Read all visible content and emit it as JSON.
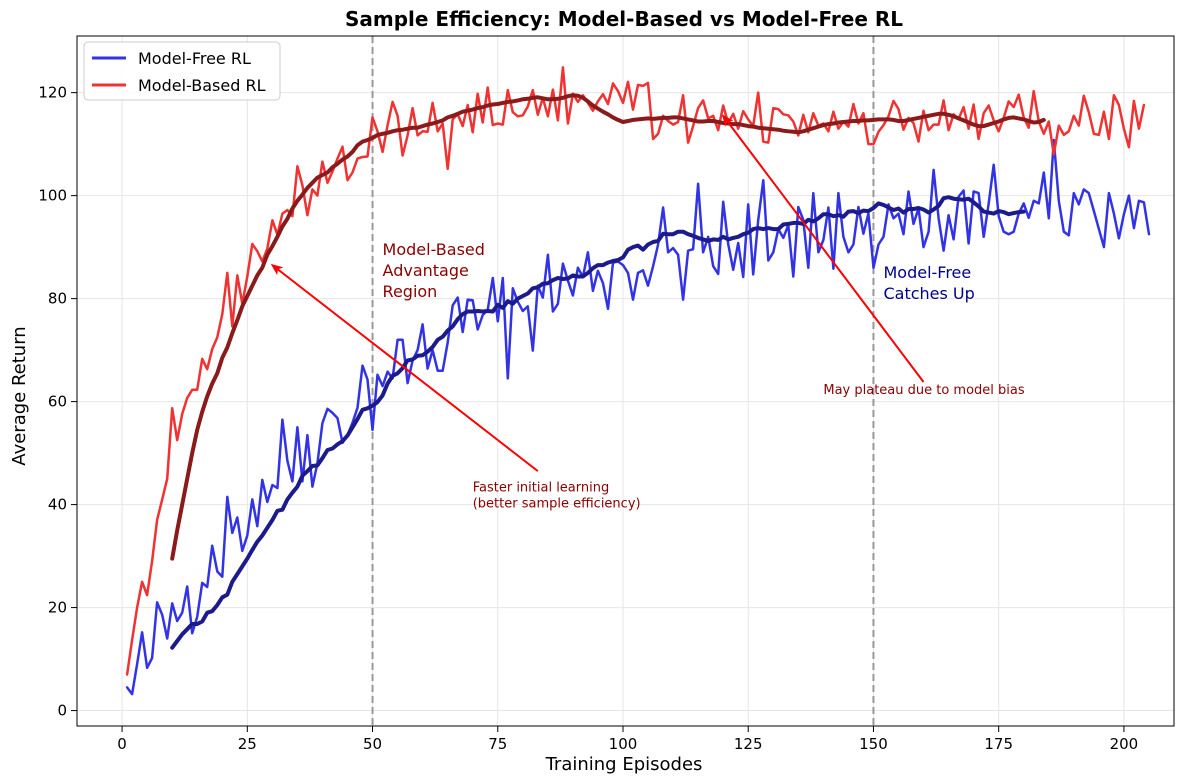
{
  "chart_data": {
    "type": "line",
    "title": "Sample Efficiency: Model-Based vs Model-Free RL",
    "xlabel": "Training Episodes",
    "ylabel": "Average Return",
    "xlim": [
      -9,
      210
    ],
    "ylim": [
      -3,
      131
    ],
    "xticks": [
      0,
      25,
      50,
      75,
      100,
      125,
      150,
      175,
      200
    ],
    "yticks": [
      0,
      20,
      40,
      60,
      80,
      100,
      120
    ],
    "grid": true,
    "legend_position": "top-left",
    "legend": [
      {
        "label": "Model-Free RL",
        "color": "#3333e6"
      },
      {
        "label": "Model-Based RL",
        "color": "#f03232"
      }
    ],
    "vlines": [
      50,
      150
    ],
    "vline_color": "#999999",
    "series": [
      {
        "name": "Model-Free RL",
        "kind": "raw",
        "color": "#3333e6",
        "width": 2.5,
        "x_start": 1,
        "values": [
          4.5,
          3.2,
          9,
          15.2,
          8.3,
          10.2,
          21,
          18.6,
          14,
          20.8,
          17.4,
          19,
          24.1,
          15,
          18.2,
          24.8,
          24,
          32,
          27,
          26,
          41.5,
          34.5,
          37.5,
          31,
          34,
          41,
          35.8,
          44.8,
          40.5,
          43.8,
          43.2,
          56.5,
          48.5,
          44.5,
          55,
          44.5,
          53.5,
          43.5,
          48,
          55.8,
          58.6,
          57.8,
          56.8,
          52,
          53.5,
          55.9,
          58.8,
          67,
          64.3,
          54.5,
          65.2,
          63,
          65.8,
          64.5,
          72,
          72,
          63.6,
          68,
          70,
          75,
          66.4,
          70,
          66,
          66,
          71.5,
          78.7,
          80.2,
          73.5,
          79.8,
          79.7,
          74,
          76.8,
          77.8,
          84,
          75.6,
          84,
          64.5,
          82,
          79.4,
          77.6,
          78.5,
          69.9,
          82.5,
          80.2,
          88.5,
          77.5,
          79,
          86.8,
          83.5,
          80.6,
          86,
          84.2,
          89,
          81.5,
          85.4,
          83,
          78,
          87,
          87.2,
          86.5,
          85,
          79.8,
          85,
          85.5,
          82.5,
          86.3,
          90.5,
          97.7,
          89,
          89.8,
          88.5,
          79.8,
          89.3,
          89.6,
          102.3,
          89,
          92,
          86.3,
          84.8,
          98.8,
          90.6,
          85.6,
          90.8,
          84.2,
          98.3,
          84.7,
          95.2,
          103,
          87.4,
          89,
          93.5,
          91.8,
          94.3,
          84.3,
          97.8,
          95.3,
          86,
          100.5,
          89,
          91.4,
          97.7,
          85.8,
          100.5,
          92,
          89,
          90.5,
          97.8,
          92.6,
          96.5,
          86,
          90.5,
          92,
          98.3,
          95.6,
          96.5,
          92.5,
          100.8,
          94.5,
          97.5,
          90,
          93,
          105,
          95.6,
          89.3,
          96.2,
          91.5,
          99.8,
          101,
          90.7,
          100.8,
          100.5,
          92,
          98.5,
          106,
          96,
          93,
          92.5,
          93,
          96.5,
          98.5,
          95.7,
          99,
          98.5,
          104.5,
          95.6,
          110.8,
          99,
          93,
          92.3,
          100.5,
          98.3,
          101.2,
          100.5,
          97,
          93.5,
          90,
          100.5,
          96.5,
          91.7,
          96.4,
          100,
          93.7,
          99,
          98.7,
          92.5
        ]
      },
      {
        "name": "Model-Based RL",
        "kind": "raw",
        "color": "#f03232",
        "width": 2.5,
        "x_start": 1,
        "values": [
          7,
          13.7,
          20,
          25,
          22.4,
          29,
          37,
          41,
          45,
          58.7,
          52.5,
          57.6,
          60.7,
          62.3,
          62.3,
          68.3,
          66.3,
          70.2,
          72.5,
          77,
          85,
          74.6,
          84.5,
          79,
          84.3,
          90.6,
          89.2,
          87.2,
          89.7,
          95.2,
          92.4,
          96.5,
          97.2,
          96,
          105.7,
          102,
          96.2,
          101.2,
          100,
          106.6,
          102.5,
          104.7,
          107.2,
          109.5,
          103,
          104.5,
          107.2,
          107.5,
          107.6,
          115.2,
          112.5,
          108.5,
          113.7,
          118.2,
          115.5,
          107.8,
          111.7,
          117,
          111.7,
          112.5,
          112.4,
          118,
          112.5,
          114,
          105.2,
          114.8,
          115.8,
          113.5,
          117.6,
          112.3,
          119.8,
          114.2,
          121,
          113.7,
          114,
          113.8,
          120.5,
          116.2,
          115.4,
          115.6,
          117.3,
          120.5,
          115.7,
          119,
          115.4,
          120.6,
          114.6,
          124.9,
          114,
          119.8,
          118.2,
          119.5,
          118,
          116.5,
          118.3,
          119.7,
          117.8,
          121.8,
          120.3,
          118,
          122.1,
          116.7,
          121.5,
          121.3,
          121.9,
          111,
          112,
          115.5,
          114.5,
          113.8,
          114.3,
          119.5,
          110.3,
          113.5,
          117,
          118.5,
          115,
          115.5,
          112.7,
          117.5,
          114,
          115.9,
          113,
          116.4,
          114.8,
          113.5,
          120,
          110.5,
          110.3,
          117,
          116.8,
          115.8,
          115.6,
          114.4,
          111.7,
          115.7,
          112.3,
          116,
          113.6,
          114,
          112.5,
          116.3,
          113,
          114.4,
          113.4,
          117.8,
          114,
          116,
          110,
          110,
          112.4,
          113.7,
          115.4,
          118.4,
          116.8,
          112.8,
          115.1,
          114.1,
          110.5,
          116.5,
          112.7,
          113.8,
          113.8,
          118.5,
          112.7,
          115.8,
          114.9,
          117.2,
          113,
          117.7,
          111,
          116,
          117.5,
          114.6,
          112.5,
          115.1,
          118.3,
          117.2,
          119.6,
          115.2,
          113.2,
          120.3,
          114.4,
          112,
          114.4,
          108,
          113.6,
          111.8,
          112.5,
          115.5,
          113.6,
          119.4,
          116.2,
          112,
          111.8,
          116.3,
          111,
          119.5,
          117.6,
          113,
          109.4,
          118.4,
          113,
          117.6
        ]
      },
      {
        "name": "Model-Free RL (moving average)",
        "kind": "smooth",
        "color": "#1b1b8c",
        "width": 4,
        "x_start": 10,
        "values": [
          12.2,
          13.5,
          14.8,
          15.8,
          16.8,
          16.8,
          17.3,
          19,
          19.3,
          20.5,
          22,
          22.5,
          25,
          26.5,
          28,
          29.5,
          31.2,
          32.8,
          34,
          35.5,
          37,
          38.8,
          39,
          41,
          42.3,
          43.5,
          45.6,
          46.5,
          47.5,
          47.6,
          49,
          50.6,
          50.9,
          51.7,
          52.3,
          53.4,
          55,
          56.6,
          58.4,
          58.7,
          59.2,
          59.9,
          61.2,
          63.5,
          65,
          65.5,
          66.5,
          68,
          68.2,
          68.9,
          69,
          69.7,
          70.6,
          72,
          72.6,
          73.8,
          74.6,
          76,
          77,
          77.5,
          77.5,
          77.6,
          77.5,
          77.6,
          77.5,
          78.8,
          78.2,
          79.5,
          79,
          80,
          80.5,
          81,
          82,
          82.2,
          82.9,
          83,
          83.6,
          84,
          83.8,
          83.9,
          84.5,
          84.3,
          84.3,
          85,
          85.9,
          86.5,
          86.5,
          87,
          87.3,
          87.5,
          88,
          89.5,
          90,
          90.3,
          89.5,
          90.5,
          91,
          91.2,
          92.6,
          92.5,
          92.5,
          93,
          93,
          92.5,
          92.2,
          91.8,
          91.5,
          91.2,
          91.5,
          91.4,
          92,
          91.5,
          91.8,
          92,
          92.5,
          92.8,
          93.5,
          93.7,
          93.5,
          93.7,
          93.5,
          93.5,
          94.4,
          94.5,
          94.7,
          94.7,
          94.5,
          95.3,
          95,
          95.6,
          96.4,
          96.4,
          96,
          96.2,
          95.9,
          96.9,
          97,
          96.6,
          97.1,
          97,
          97.6,
          98.5,
          98.2,
          97.7,
          97.2,
          97.5,
          96.7,
          97.4,
          97.4,
          97.6,
          97.3,
          96.7,
          97.3,
          98,
          99.5,
          99.7,
          99.4,
          99.3,
          99.2,
          99.4,
          98.7,
          97.9,
          96.9,
          96.7,
          96.5,
          97,
          96.8,
          96.4,
          96.6,
          96.8,
          96.9
        ]
      },
      {
        "name": "Model-Based RL (moving average)",
        "kind": "smooth",
        "color": "#8b1a1a",
        "width": 4,
        "x_start": 10,
        "values": [
          29.5,
          35,
          40,
          45,
          50,
          54.5,
          58,
          61,
          63.5,
          65.5,
          68.5,
          70.5,
          73.3,
          75.8,
          78.5,
          80.5,
          82.5,
          84.5,
          86,
          88.5,
          90.2,
          92,
          94,
          95.5,
          97.5,
          99,
          100.2,
          101.5,
          102.5,
          103.5,
          104,
          104.5,
          105.5,
          106.2,
          107,
          107.6,
          108.5,
          109.8,
          110.5,
          110.8,
          111.2,
          111.8,
          112,
          112.2,
          112.5,
          112.7,
          112.8,
          113,
          113.2,
          113.2,
          113.5,
          113.8,
          114,
          114.3,
          114.6,
          115.2,
          115.5,
          115.9,
          116.3,
          116.5,
          116.7,
          117,
          117.2,
          117.5,
          117.7,
          117.8,
          118,
          118.2,
          118.3,
          118.5,
          118.7,
          118.8,
          119,
          119.1,
          118.9,
          118.7,
          118.7,
          118.8,
          119,
          119.3,
          119.5,
          119.4,
          119,
          118.3,
          117.5,
          116.9,
          116.3,
          115.8,
          115.2,
          114.7,
          114.3,
          114.5,
          114.7,
          114.8,
          114.9,
          115,
          114.9,
          115,
          115.1,
          115.1,
          115.2,
          115.2,
          115,
          114.8,
          114.6,
          114.4,
          114.4,
          114.5,
          114.5,
          114.3,
          114.1,
          114,
          113.9,
          113.9,
          113.7,
          113.5,
          113.4,
          113.2,
          113.1,
          113,
          112.9,
          112.8,
          112.6,
          112.5,
          112.4,
          112.3,
          112.5,
          112.8,
          113.1,
          113.4,
          113.7,
          113.9,
          114,
          114.2,
          114.3,
          114.4,
          114.5,
          114.5,
          114.6,
          114.6,
          114.7,
          114.8,
          114.8,
          114.8,
          114.7,
          114.5,
          114.5,
          114.7,
          114.9,
          115.1,
          115.3,
          115.5,
          115.7,
          115.9,
          115.9,
          115.7,
          115.4,
          115,
          114.6,
          114.2,
          113.8,
          113.5,
          113.5,
          113.8,
          114.1,
          114.4,
          114.8,
          115.1,
          115.2,
          115,
          114.8,
          114.5,
          114.2,
          114.3,
          114.7
        ]
      }
    ],
    "annotations": [
      {
        "text": [
          "Model-Based",
          "Advantage",
          "Region"
        ],
        "x": 52,
        "y": 88.5,
        "color": "#8b0000"
      },
      {
        "text": [
          "Model-Free",
          "Catches Up"
        ],
        "x": 152,
        "y": 84,
        "color": "#00008b"
      },
      {
        "text": [
          "Faster initial learning",
          "(better sample efficiency)"
        ],
        "x": 70,
        "y": 42.5,
        "color": "#8b0000",
        "arrow_to": [
          30,
          86.5
        ],
        "arrow_from": [
          83,
          46.5
        ],
        "arrow_color": "#ff0000"
      },
      {
        "text": [
          "May plateau due to model bias"
        ],
        "x": 140,
        "y": 61.5,
        "color": "#8b0000",
        "arrow_to": [
          120,
          115.5
        ],
        "arrow_from": [
          160,
          63.8
        ],
        "arrow_color": "#ff0000"
      }
    ]
  }
}
